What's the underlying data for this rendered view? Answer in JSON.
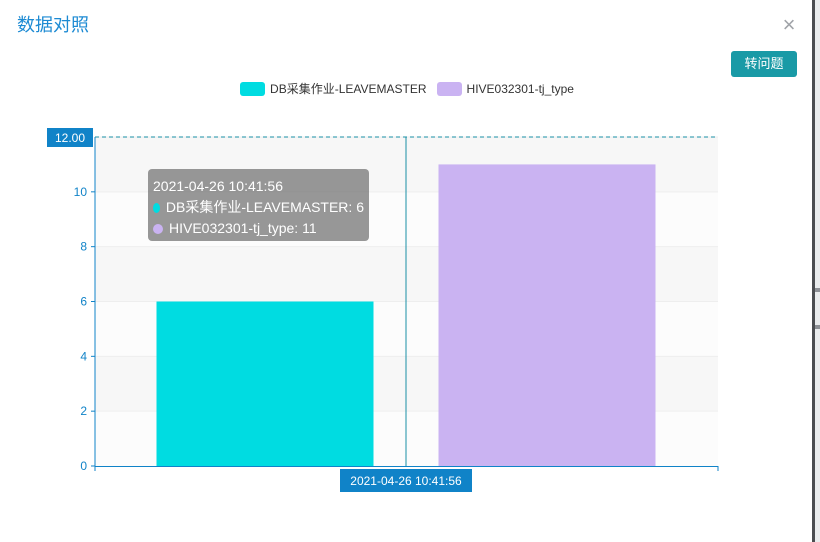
{
  "dialog": {
    "title": "数据对照",
    "close_symbol": "×",
    "action_button_label": "转问题"
  },
  "colors": {
    "series1": "#00dce1",
    "series2": "#cab3f2",
    "accent": "#1083c8",
    "title": "#1c8ad3",
    "button": "#199aa6"
  },
  "chart_data": {
    "type": "bar",
    "categories": [
      "2021-04-26 10:41:56"
    ],
    "series": [
      {
        "name": "DB采集作业-LEAVEMASTER",
        "values": [
          6
        ]
      },
      {
        "name": "HIVE032301-tj_type",
        "values": [
          11
        ]
      }
    ],
    "ylim": [
      0,
      12
    ],
    "yticks": [
      "0",
      "2",
      "4",
      "6",
      "8",
      "10"
    ],
    "legend_position": "top-center",
    "pointer": {
      "y_label": "12.00",
      "x_label": "2021-04-26 10:41:56"
    },
    "tooltip": {
      "title": "2021-04-26 10:41:56",
      "rows": [
        "DB采集作业-LEAVEMASTER: 6",
        "HIVE032301-tj_type: 11"
      ]
    }
  }
}
